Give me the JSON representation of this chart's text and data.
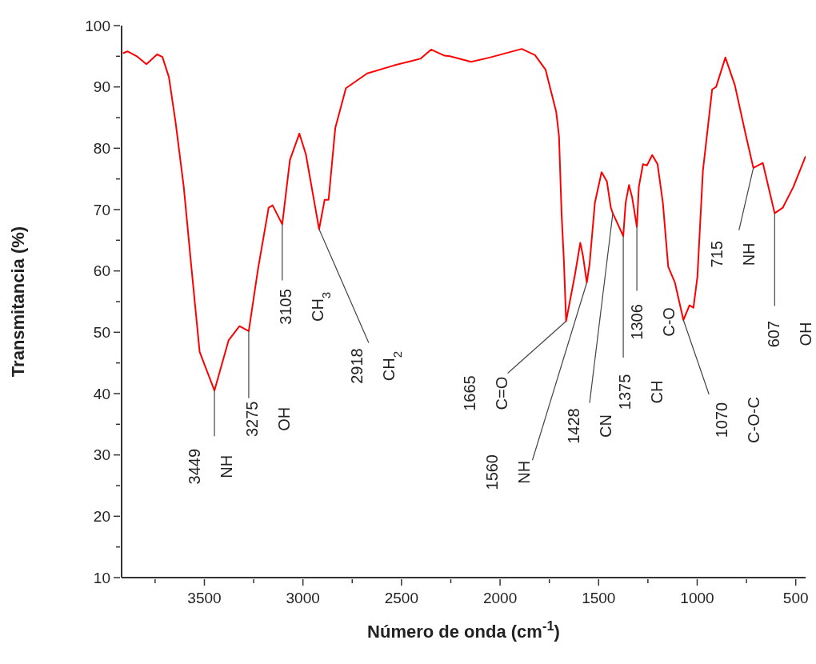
{
  "chart_data": {
    "type": "line",
    "xlabel": "Número de onda   (cm$^{-1}$)",
    "ylabel": "Transmitancia (%)",
    "xlim": [
      3920,
      450
    ],
    "ylim": [
      10,
      100
    ],
    "xticks": [
      3500,
      3000,
      2500,
      2000,
      1500,
      1000,
      500,
      {
        "value": 3750,
        "label": null
      },
      {
        "value": 3250,
        "label": null
      },
      {
        "value": 2750,
        "label": null
      },
      {
        "value": 2250,
        "label": null
      },
      {
        "value": 1750,
        "label": null
      },
      {
        "value": 1250,
        "label": null
      },
      {
        "value": 750,
        "label": null
      }
    ],
    "yticks": [
      10,
      20,
      30,
      40,
      50,
      60,
      70,
      80,
      90,
      100,
      {
        "value": 15,
        "label": null
      },
      {
        "value": 25,
        "label": null
      },
      {
        "value": 35,
        "label": null
      },
      {
        "value": 45,
        "label": null
      },
      {
        "value": 55,
        "label": null
      },
      {
        "value": 65,
        "label": null
      },
      {
        "value": 75,
        "label": null
      },
      {
        "value": 85,
        "label": null
      },
      {
        "value": 95,
        "label": null
      }
    ],
    "grid": false,
    "legend": false,
    "marker": "none",
    "line_style": "solid",
    "series": [
      {
        "color": "#ff0000",
        "x": [
          3913,
          3890,
          3843,
          3794,
          3740,
          3713,
          3680,
          3646,
          3605,
          3565,
          3524,
          3449,
          3377,
          3322,
          3275,
          3228,
          3174,
          3154,
          3105,
          3066,
          3018,
          2985,
          2918,
          2890,
          2870,
          2836,
          2782,
          2674,
          2539,
          2404,
          2350,
          2282,
          2255,
          2147,
          2052,
          1890,
          1823,
          1769,
          1715,
          1701,
          1688,
          1676,
          1665,
          1620,
          1593,
          1579,
          1560,
          1546,
          1519,
          1485,
          1458,
          1438,
          1428,
          1375,
          1363,
          1346,
          1330,
          1306,
          1296,
          1275,
          1255,
          1228,
          1201,
          1174,
          1147,
          1113,
          1070,
          1039,
          1019,
          999,
          971,
          924,
          904,
          857,
          809,
          755,
          715,
          667,
          607,
          566,
          512,
          450
        ],
        "values": [
          95.5,
          95.8,
          95.0,
          93.7,
          95.3,
          94.9,
          91.6,
          84.2,
          73.8,
          60.3,
          46.8,
          40.5,
          48.7,
          51.0,
          50.2,
          60.3,
          70.3,
          70.7,
          67.6,
          78.1,
          82.4,
          79.0,
          66.8,
          71.6,
          71.6,
          83.3,
          89.8,
          92.2,
          93.5,
          94.6,
          96.1,
          95.1,
          95.0,
          94.1,
          94.8,
          96.2,
          95.2,
          92.8,
          85.9,
          82.0,
          69.4,
          61.5,
          51.8,
          59.4,
          64.6,
          62.4,
          58.1,
          61.1,
          71.1,
          76.1,
          74.6,
          70.3,
          69.4,
          65.7,
          71.1,
          74.0,
          72.0,
          67.2,
          73.7,
          77.4,
          77.2,
          78.9,
          77.4,
          71.1,
          60.7,
          58.1,
          52.0,
          54.4,
          54.0,
          59.0,
          76.3,
          89.6,
          90.0,
          94.8,
          90.3,
          82.4,
          76.8,
          77.6,
          69.4,
          70.3,
          73.7,
          78.7
        ]
      }
    ],
    "annotations": [
      {
        "text": "3449\nNH",
        "x": 3449,
        "y": 40.5
      },
      {
        "text": "3275\nOH",
        "x": 3275,
        "y": 50.2
      },
      {
        "text": "3105\nCH$_{3}$",
        "x": 3105,
        "y": 67.6
      },
      {
        "text": "2918\nCH$_{2}$",
        "x": 2918,
        "y": 66.8
      },
      {
        "text": "1665\nC=O",
        "x": 1665,
        "y": 51.8
      },
      {
        "text": "1560\nNH",
        "x": 1560,
        "y": 58.1
      },
      {
        "text": "1428\nCN",
        "x": 1428,
        "y": 69.4
      },
      {
        "text": "1375\nCH",
        "x": 1375,
        "y": 65.7
      },
      {
        "text": "1306\nC-O",
        "x": 1306,
        "y": 67.2
      },
      {
        "text": "1070\nC-O-C",
        "x": 1070,
        "y": 52.0
      },
      {
        "text": "715\nNH",
        "x": 715,
        "y": 76.8
      },
      {
        "text": "607\nOH",
        "x": 607,
        "y": 69.4
      }
    ]
  }
}
